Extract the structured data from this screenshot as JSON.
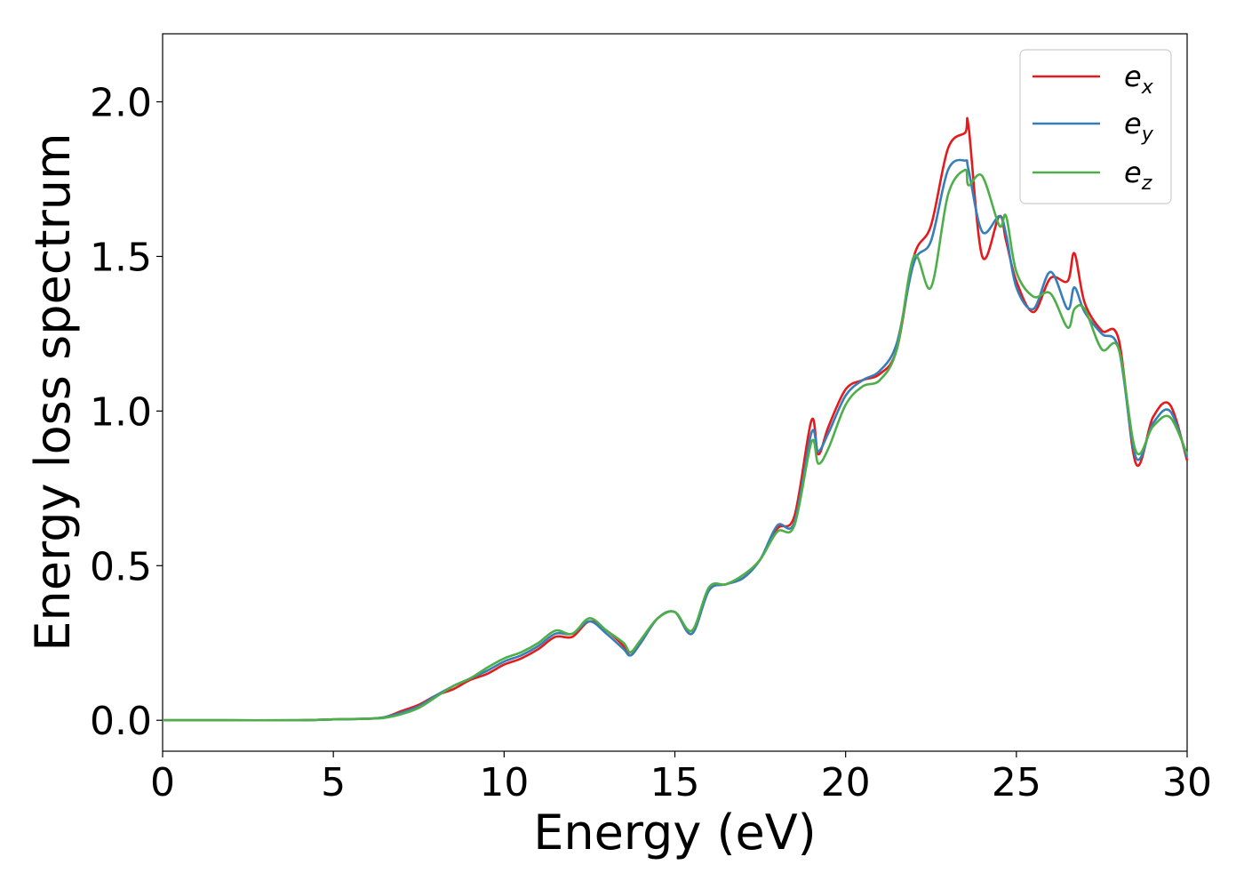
{
  "chart_data": {
    "type": "line",
    "xlabel": "Energy (eV)",
    "ylabel": "Energy loss spectrum",
    "xlim": [
      0,
      30
    ],
    "ylim": [
      -0.1,
      2.22
    ],
    "xticks": [
      0,
      5,
      10,
      15,
      20,
      25,
      30
    ],
    "xtick_labels": [
      "0",
      "5",
      "10",
      "15",
      "20",
      "25",
      "30"
    ],
    "yticks": [
      0.0,
      0.5,
      1.0,
      1.5,
      2.0
    ],
    "ytick_labels": [
      "0.0",
      "0.5",
      "1.0",
      "1.5",
      "2.0"
    ],
    "grid": false,
    "legend_position": "top-right",
    "series": [
      {
        "name": "e_x",
        "label_main": "e",
        "label_sub": "x",
        "color": "#e41a1c",
        "x": [
          0,
          2,
          4,
          5,
          6,
          6.5,
          7,
          7.5,
          8,
          8.5,
          9,
          9.5,
          10,
          10.5,
          11,
          11.5,
          12,
          12.5,
          13,
          13.5,
          13.7,
          14,
          14.5,
          15,
          15.5,
          16,
          16.5,
          17,
          17.5,
          18,
          18.5,
          19,
          19.2,
          19.5,
          20,
          20.5,
          21,
          21.5,
          22,
          22.5,
          23,
          23.5,
          23.6,
          24,
          24.5,
          24.7,
          25,
          25.5,
          26,
          26.5,
          26.7,
          27,
          27.5,
          28,
          28.5,
          29,
          29.5,
          30
        ],
        "y": [
          0,
          0,
          0,
          0.003,
          0.005,
          0.01,
          0.03,
          0.05,
          0.08,
          0.1,
          0.13,
          0.15,
          0.18,
          0.2,
          0.23,
          0.27,
          0.27,
          0.32,
          0.29,
          0.24,
          0.21,
          0.25,
          0.33,
          0.35,
          0.28,
          0.42,
          0.44,
          0.46,
          0.52,
          0.62,
          0.66,
          0.97,
          0.86,
          0.95,
          1.07,
          1.1,
          1.12,
          1.2,
          1.5,
          1.6,
          1.85,
          1.9,
          1.92,
          1.5,
          1.63,
          1.55,
          1.42,
          1.32,
          1.43,
          1.42,
          1.51,
          1.35,
          1.26,
          1.23,
          0.83,
          0.98,
          1.02,
          0.84
        ]
      },
      {
        "name": "e_y",
        "label_main": "e",
        "label_sub": "y",
        "color": "#377eb8",
        "x": [
          0,
          2,
          4,
          5,
          6,
          6.5,
          7,
          7.5,
          8,
          8.5,
          9,
          9.5,
          10,
          10.5,
          11,
          11.5,
          12,
          12.5,
          13,
          13.5,
          13.7,
          14,
          14.5,
          15,
          15.5,
          16,
          16.5,
          17,
          17.5,
          18,
          18.5,
          19,
          19.2,
          19.5,
          20,
          20.5,
          21,
          21.5,
          22,
          22.5,
          23,
          23.5,
          23.6,
          24,
          24.5,
          24.7,
          25,
          25.5,
          26,
          26.5,
          26.7,
          27,
          27.5,
          28,
          28.5,
          29,
          29.5,
          30
        ],
        "y": [
          0,
          0,
          0,
          0.003,
          0.005,
          0.01,
          0.025,
          0.045,
          0.08,
          0.11,
          0.135,
          0.16,
          0.19,
          0.21,
          0.24,
          0.28,
          0.28,
          0.32,
          0.28,
          0.23,
          0.21,
          0.25,
          0.33,
          0.35,
          0.28,
          0.42,
          0.44,
          0.46,
          0.52,
          0.63,
          0.64,
          0.93,
          0.87,
          0.93,
          1.05,
          1.1,
          1.13,
          1.22,
          1.48,
          1.55,
          1.78,
          1.81,
          1.78,
          1.58,
          1.63,
          1.57,
          1.4,
          1.33,
          1.45,
          1.33,
          1.4,
          1.32,
          1.25,
          1.2,
          0.85,
          0.96,
          1.0,
          0.85
        ]
      },
      {
        "name": "e_z",
        "label_main": "e",
        "label_sub": "z",
        "color": "#4daf4a",
        "x": [
          0,
          2,
          4,
          5,
          6,
          6.5,
          7,
          7.5,
          8,
          8.5,
          9,
          9.5,
          10,
          10.5,
          11,
          11.5,
          12,
          12.5,
          13,
          13.5,
          13.7,
          14,
          14.5,
          15,
          15.5,
          16,
          16.5,
          17,
          17.5,
          18,
          18.5,
          19,
          19.2,
          19.5,
          20,
          20.5,
          21,
          21.5,
          22,
          22.5,
          23,
          23.5,
          23.6,
          24,
          24.5,
          24.7,
          25,
          25.5,
          26,
          26.5,
          26.7,
          27,
          27.5,
          28,
          28.5,
          29,
          29.5,
          30
        ],
        "y": [
          0,
          0,
          0,
          0.003,
          0.005,
          0.008,
          0.02,
          0.04,
          0.075,
          0.11,
          0.135,
          0.17,
          0.2,
          0.22,
          0.25,
          0.29,
          0.28,
          0.33,
          0.29,
          0.25,
          0.22,
          0.26,
          0.33,
          0.35,
          0.29,
          0.43,
          0.44,
          0.47,
          0.52,
          0.61,
          0.63,
          0.9,
          0.83,
          0.88,
          1.02,
          1.08,
          1.1,
          1.2,
          1.5,
          1.4,
          1.7,
          1.78,
          1.73,
          1.76,
          1.6,
          1.63,
          1.45,
          1.37,
          1.38,
          1.27,
          1.33,
          1.33,
          1.2,
          1.2,
          0.87,
          0.95,
          0.98,
          0.86
        ]
      }
    ]
  }
}
